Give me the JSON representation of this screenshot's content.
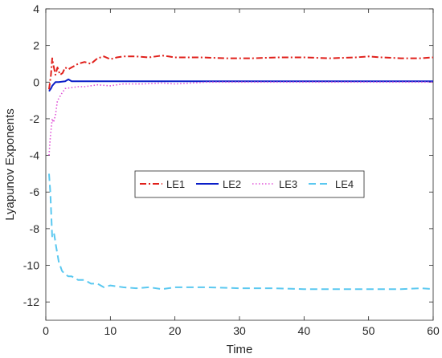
{
  "chart_data": {
    "type": "line",
    "title": "",
    "xlabel": "Time",
    "ylabel": "Lyapunov Exponents",
    "xlim": [
      0,
      60
    ],
    "ylim": [
      -13,
      4
    ],
    "xticks": [
      0,
      10,
      20,
      30,
      40,
      50,
      60
    ],
    "yticks": [
      4,
      2,
      0,
      -2,
      -4,
      -6,
      -8,
      -10,
      -12
    ],
    "grid": false,
    "legend_position": "center",
    "series": [
      {
        "name": "LE1",
        "color": "#e0201b",
        "style": "dash-dot",
        "x": [
          0.5,
          0.8,
          1.0,
          1.2,
          1.5,
          1.8,
          2.2,
          2.6,
          3.0,
          3.5,
          4.0,
          5.0,
          6.0,
          7.0,
          8.0,
          9.0,
          10.0,
          11.0,
          12.0,
          14.0,
          16.0,
          18.0,
          19.0,
          20.0,
          24.0,
          28.0,
          32.0,
          36.0,
          40.0,
          44.0,
          48.0,
          50.0,
          52.0,
          55.0,
          58.0,
          60.0
        ],
        "y": [
          -0.4,
          0.4,
          1.3,
          0.9,
          0.4,
          0.8,
          0.4,
          0.5,
          0.8,
          0.7,
          0.8,
          1.0,
          1.1,
          1.0,
          1.3,
          1.4,
          1.25,
          1.35,
          1.4,
          1.4,
          1.35,
          1.45,
          1.4,
          1.35,
          1.35,
          1.3,
          1.3,
          1.35,
          1.35,
          1.3,
          1.35,
          1.4,
          1.35,
          1.3,
          1.3,
          1.35
        ]
      },
      {
        "name": "LE2",
        "color": "#0a1ec8",
        "style": "solid",
        "x": [
          0.5,
          0.8,
          1.0,
          1.5,
          2.0,
          3.0,
          3.5,
          4.0,
          5.0,
          6.0,
          8.0,
          10.0,
          15.0,
          20.0,
          30.0,
          40.0,
          50.0,
          60.0
        ],
        "y": [
          -0.5,
          -0.35,
          -0.2,
          0.0,
          0.0,
          0.05,
          0.15,
          0.05,
          0.05,
          0.05,
          0.05,
          0.05,
          0.05,
          0.05,
          0.05,
          0.05,
          0.05,
          0.05
        ]
      },
      {
        "name": "LE3",
        "color": "#e050d8",
        "style": "dotted",
        "x": [
          0.5,
          0.7,
          1.0,
          1.2,
          1.5,
          1.8,
          2.0,
          2.5,
          3.0,
          4.0,
          5.0,
          6.0,
          8.0,
          10.0,
          12.0,
          15.0,
          18.0,
          20.0,
          25.0,
          30.0,
          40.0,
          50.0,
          60.0
        ],
        "y": [
          -4.0,
          -3.0,
          -2.0,
          -2.2,
          -1.8,
          -1.0,
          -0.9,
          -0.6,
          -0.35,
          -0.3,
          -0.25,
          -0.25,
          -0.15,
          -0.2,
          -0.1,
          -0.1,
          -0.05,
          -0.1,
          0.0,
          0.0,
          0.0,
          0.0,
          0.0
        ]
      },
      {
        "name": "LE4",
        "color": "#5ac8f0",
        "style": "dashed",
        "x": [
          0.5,
          0.7,
          1.0,
          1.3,
          1.6,
          2.0,
          2.5,
          3.0,
          3.5,
          4.0,
          5.0,
          6.0,
          7.0,
          8.0,
          9.0,
          10.0,
          12.0,
          14.0,
          16.0,
          18.0,
          20.0,
          22.0,
          25.0,
          30.0,
          35.0,
          40.0,
          45.0,
          50.0,
          55.0,
          58.0,
          60.0
        ],
        "y": [
          -5.0,
          -6.0,
          -8.5,
          -8.3,
          -9.0,
          -9.8,
          -10.3,
          -10.5,
          -10.6,
          -10.6,
          -10.8,
          -10.8,
          -11.0,
          -11.0,
          -11.2,
          -11.1,
          -11.2,
          -11.25,
          -11.2,
          -11.3,
          -11.2,
          -11.2,
          -11.2,
          -11.25,
          -11.25,
          -11.3,
          -11.3,
          -11.3,
          -11.3,
          -11.25,
          -11.3
        ]
      }
    ]
  }
}
